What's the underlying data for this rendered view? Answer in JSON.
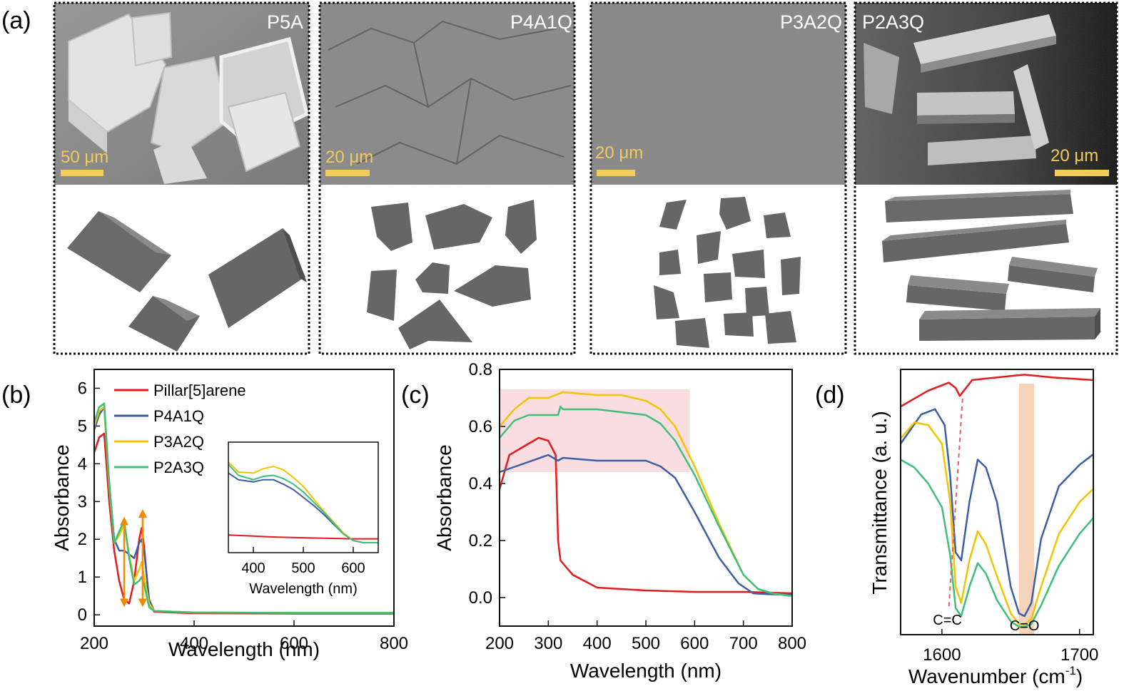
{
  "panel_a": {
    "label": "(a)",
    "samples": [
      {
        "name": "P5A",
        "scale": "50 μm"
      },
      {
        "name": "P4A1Q",
        "scale": "20 μm"
      },
      {
        "name": "P3A2Q",
        "scale": "20 μm"
      },
      {
        "name": "P2A3Q",
        "scale": "20 μm"
      }
    ]
  },
  "colors": {
    "red": "#e41a1c",
    "blue": "#3a5fa3",
    "yellow": "#f2c400",
    "green": "#3dbf7a",
    "shade_pink": "#f7d2d6",
    "shade_orange": "#f3c9a8",
    "shape_gray": "#666666"
  },
  "chart_data": [
    {
      "panel": "(b)",
      "type": "line",
      "xlabel": "Wavelength (nm)",
      "ylabel": "Absorbance",
      "xlim": [
        200,
        800
      ],
      "ylim": [
        -0.3,
        6.5
      ],
      "xticks": [
        200,
        400,
        600,
        800
      ],
      "yticks": [
        0,
        1,
        2,
        3,
        4,
        5,
        6
      ],
      "legend": [
        "Pillar[5]arene",
        "P4A1Q",
        "P3A2Q",
        "P2A3Q"
      ],
      "series": [
        {
          "name": "Pillar[5]arene",
          "color": "red",
          "x": [
            200,
            210,
            220,
            230,
            240,
            250,
            260,
            270,
            280,
            290,
            295,
            300,
            310,
            320,
            400,
            600,
            800
          ],
          "y": [
            4.3,
            4.7,
            4.8,
            3.0,
            1.7,
            0.9,
            0.4,
            0.3,
            0.9,
            2.0,
            2.3,
            1.8,
            0.3,
            0.08,
            0.04,
            0.03,
            0.03
          ]
        },
        {
          "name": "P4A1Q",
          "color": "blue",
          "x": [
            200,
            210,
            220,
            230,
            240,
            250,
            260,
            270,
            280,
            290,
            295,
            300,
            310,
            320,
            400,
            600,
            800
          ],
          "y": [
            4.9,
            5.3,
            5.5,
            3.5,
            2.0,
            1.7,
            1.7,
            1.6,
            1.5,
            1.9,
            2.0,
            1.7,
            0.4,
            0.1,
            0.06,
            0.05,
            0.05
          ]
        },
        {
          "name": "P3A2Q",
          "color": "yellow",
          "x": [
            200,
            210,
            220,
            230,
            240,
            250,
            260,
            270,
            280,
            290,
            295,
            300,
            310,
            320,
            400,
            600,
            800
          ],
          "y": [
            5.0,
            5.4,
            5.5,
            3.4,
            1.9,
            2.1,
            2.4,
            1.6,
            0.9,
            1.2,
            1.4,
            1.0,
            0.3,
            0.1,
            0.06,
            0.05,
            0.05
          ]
        },
        {
          "name": "P2A3Q",
          "color": "green",
          "x": [
            200,
            210,
            220,
            230,
            240,
            250,
            260,
            270,
            280,
            290,
            295,
            300,
            310,
            320,
            400,
            600,
            800
          ],
          "y": [
            5.1,
            5.5,
            5.6,
            3.5,
            1.9,
            2.2,
            2.5,
            1.5,
            0.8,
            0.9,
            1.0,
            0.8,
            0.2,
            0.1,
            0.06,
            0.05,
            0.05
          ]
        }
      ],
      "arrows": [
        {
          "x": 260,
          "from": 2.6,
          "to": 0.2
        },
        {
          "x": 297,
          "from": 2.8,
          "to": 0.2
        }
      ],
      "inset": {
        "xlabel": "Wavelength (nm)",
        "xlim": [
          350,
          650
        ],
        "ylim": [
          0,
          1
        ],
        "xticks": [
          400,
          500,
          600
        ],
        "series": [
          {
            "name": "Pillar[5]arene",
            "color": "red",
            "x": [
              350,
              400,
              450,
              500,
              550,
              600,
              650
            ],
            "y": [
              0.16,
              0.15,
              0.14,
              0.135,
              0.13,
              0.125,
              0.125
            ]
          },
          {
            "name": "P4A1Q",
            "color": "blue",
            "x": [
              350,
              370,
              400,
              420,
              440,
              460,
              480,
              500,
              520,
              540,
              560,
              580,
              600,
              620,
              650
            ],
            "y": [
              0.72,
              0.66,
              0.64,
              0.66,
              0.66,
              0.62,
              0.57,
              0.5,
              0.43,
              0.35,
              0.26,
              0.17,
              0.11,
              0.09,
              0.09
            ]
          },
          {
            "name": "P3A2Q",
            "color": "yellow",
            "x": [
              350,
              370,
              400,
              420,
              440,
              460,
              480,
              500,
              520,
              540,
              560,
              580,
              600,
              620,
              650
            ],
            "y": [
              0.82,
              0.73,
              0.72,
              0.76,
              0.78,
              0.75,
              0.68,
              0.6,
              0.49,
              0.38,
              0.28,
              0.18,
              0.11,
              0.09,
              0.09
            ]
          },
          {
            "name": "P2A3Q",
            "color": "green",
            "x": [
              350,
              370,
              400,
              420,
              440,
              460,
              480,
              500,
              520,
              540,
              560,
              580,
              600,
              620,
              650
            ],
            "y": [
              0.8,
              0.7,
              0.66,
              0.69,
              0.7,
              0.67,
              0.62,
              0.55,
              0.46,
              0.37,
              0.27,
              0.17,
              0.11,
              0.09,
              0.09
            ]
          }
        ]
      }
    },
    {
      "panel": "(c)",
      "type": "line",
      "xlabel": "Wavelength (nm)",
      "ylabel": "Absorbance",
      "xlim": [
        200,
        800
      ],
      "ylim": [
        -0.1,
        0.8
      ],
      "xticks": [
        200,
        300,
        400,
        500,
        600,
        700,
        800
      ],
      "yticks": [
        0.0,
        0.2,
        0.4,
        0.6,
        0.8
      ],
      "ytick_labels": [
        "0.0",
        "0.2",
        "0.4",
        "0.6",
        "0.8"
      ],
      "shaded_region": {
        "x": [
          200,
          590
        ],
        "y": [
          0.44,
          0.73
        ]
      },
      "series": [
        {
          "name": "Pillar[5]arene",
          "color": "red",
          "x": [
            200,
            220,
            250,
            280,
            300,
            315,
            320,
            325,
            330,
            350,
            400,
            500,
            600,
            700,
            800
          ],
          "y": [
            0.38,
            0.5,
            0.53,
            0.56,
            0.55,
            0.5,
            0.2,
            0.13,
            0.12,
            0.08,
            0.035,
            0.025,
            0.02,
            0.02,
            0.015
          ]
        },
        {
          "name": "P4A1Q",
          "color": "blue",
          "x": [
            200,
            250,
            300,
            320,
            330,
            400,
            500,
            530,
            560,
            600,
            650,
            690,
            720,
            750,
            800
          ],
          "y": [
            0.44,
            0.47,
            0.5,
            0.48,
            0.49,
            0.48,
            0.48,
            0.46,
            0.42,
            0.3,
            0.14,
            0.05,
            0.015,
            0.012,
            0.01
          ]
        },
        {
          "name": "P3A2Q",
          "color": "yellow",
          "x": [
            200,
            230,
            260,
            300,
            330,
            400,
            450,
            500,
            530,
            560,
            600,
            650,
            700,
            730,
            760,
            800
          ],
          "y": [
            0.6,
            0.66,
            0.7,
            0.7,
            0.72,
            0.71,
            0.71,
            0.69,
            0.66,
            0.6,
            0.46,
            0.26,
            0.08,
            0.03,
            0.015,
            0.005
          ]
        },
        {
          "name": "P2A3Q",
          "color": "green",
          "x": [
            200,
            230,
            260,
            300,
            320,
            325,
            330,
            400,
            450,
            500,
            530,
            560,
            600,
            650,
            700,
            730,
            760,
            800
          ],
          "y": [
            0.56,
            0.62,
            0.64,
            0.64,
            0.64,
            0.67,
            0.66,
            0.66,
            0.65,
            0.64,
            0.61,
            0.55,
            0.43,
            0.25,
            0.08,
            0.03,
            0.015,
            0.005
          ]
        }
      ]
    },
    {
      "panel": "(d)",
      "type": "line",
      "xlabel": "Wavenumber (cm",
      "xlabel_sup": "-1",
      "xlabel_end": ")",
      "ylabel": "Transmittance (a. u.)",
      "xlim": [
        1570,
        1710
      ],
      "ylim": [
        0,
        1
      ],
      "xticks": [
        1600,
        1700
      ],
      "annotations": [
        {
          "text": "C=C",
          "x": 1604
        },
        {
          "text": "C=O",
          "x": 1660
        }
      ],
      "shaded_band": {
        "x": [
          1656,
          1667
        ]
      },
      "dashed_guide": {
        "x": [
          1615,
          1605
        ],
        "y": [
          0.89,
          0.1
        ]
      },
      "series": [
        {
          "name": "Pillar[5]arene",
          "color": "red",
          "x": [
            1570,
            1590,
            1605,
            1610,
            1613,
            1616,
            1622,
            1640,
            1660,
            1680,
            1710
          ],
          "y": [
            0.86,
            0.92,
            0.95,
            0.93,
            0.9,
            0.92,
            0.96,
            0.97,
            0.98,
            0.97,
            0.96
          ]
        },
        {
          "name": "P4A1Q",
          "color": "blue",
          "x": [
            1570,
            1585,
            1595,
            1602,
            1606,
            1610,
            1614,
            1620,
            1626,
            1632,
            1640,
            1650,
            1656,
            1660,
            1665,
            1672,
            1685,
            1700,
            1710
          ],
          "y": [
            0.72,
            0.83,
            0.85,
            0.79,
            0.6,
            0.31,
            0.28,
            0.5,
            0.66,
            0.63,
            0.5,
            0.18,
            0.08,
            0.07,
            0.12,
            0.36,
            0.56,
            0.64,
            0.68
          ]
        },
        {
          "name": "P3A2Q",
          "color": "yellow",
          "x": [
            1570,
            1580,
            1590,
            1600,
            1606,
            1610,
            1614,
            1620,
            1626,
            1632,
            1640,
            1650,
            1656,
            1660,
            1665,
            1672,
            1685,
            1700,
            1710
          ],
          "y": [
            0.74,
            0.8,
            0.79,
            0.72,
            0.5,
            0.18,
            0.12,
            0.28,
            0.39,
            0.34,
            0.22,
            0.08,
            0.04,
            0.04,
            0.06,
            0.18,
            0.38,
            0.5,
            0.55
          ]
        },
        {
          "name": "P2A3Q",
          "color": "green",
          "x": [
            1570,
            1580,
            1590,
            1600,
            1606,
            1610,
            1614,
            1620,
            1626,
            1632,
            1640,
            1650,
            1656,
            1660,
            1665,
            1672,
            1685,
            1700,
            1710
          ],
          "y": [
            0.66,
            0.63,
            0.57,
            0.48,
            0.3,
            0.1,
            0.07,
            0.18,
            0.27,
            0.23,
            0.13,
            0.05,
            0.03,
            0.03,
            0.04,
            0.11,
            0.26,
            0.38,
            0.44
          ]
        }
      ]
    }
  ]
}
